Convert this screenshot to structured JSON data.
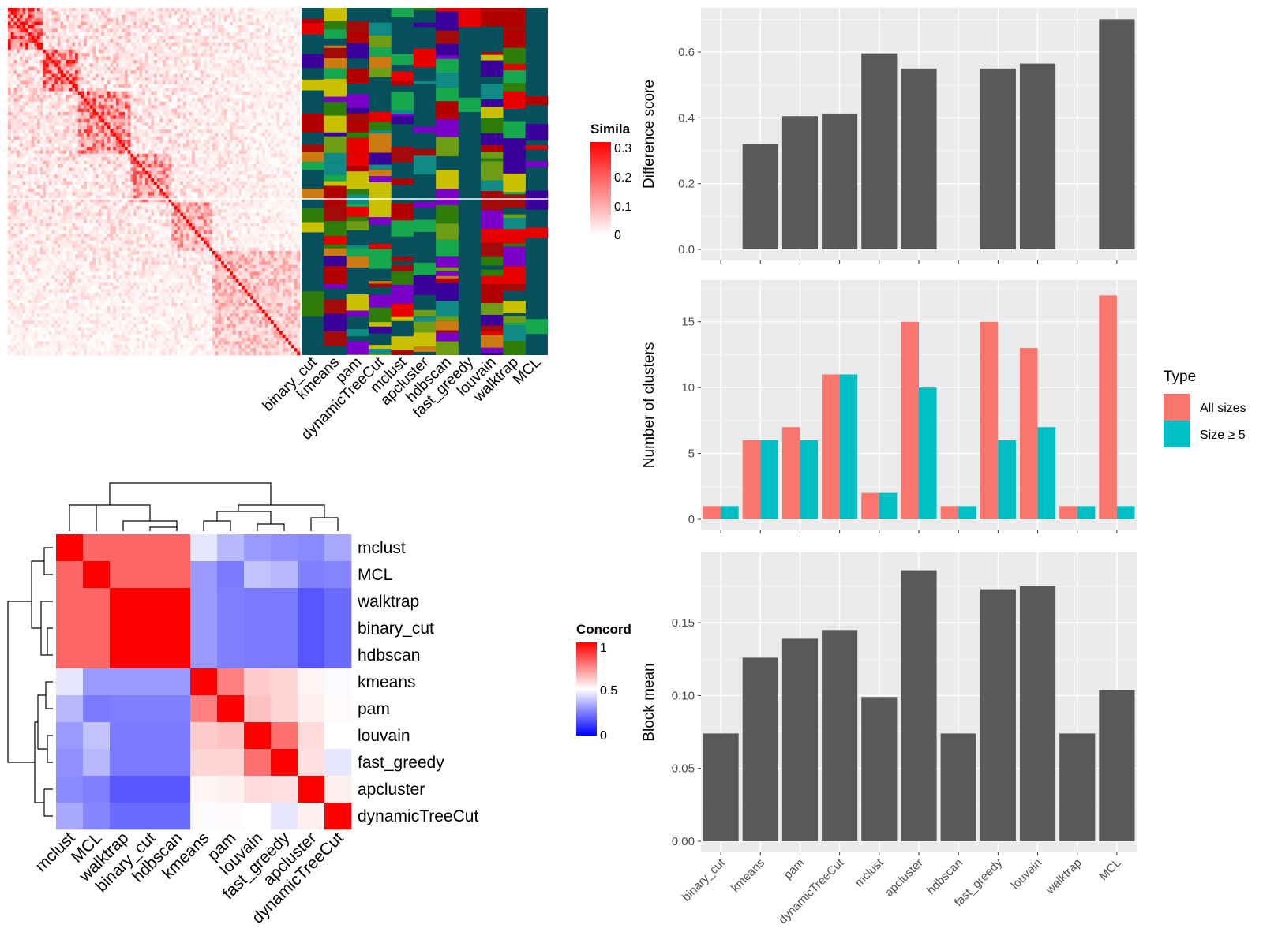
{
  "methods": [
    "binary_cut",
    "kmeans",
    "pam",
    "dynamicTreeCut",
    "mclust",
    "apcluster",
    "hdbscan",
    "fast_greedy",
    "louvain",
    "walktrap",
    "MCL"
  ],
  "panel_a": {
    "legend_title": "Simila",
    "legend_ticks": [
      "0.3",
      "0.2",
      "0.1",
      "0"
    ],
    "colors": {
      "low": "#ffffff",
      "high": "#ff0000",
      "bg": "#06505e"
    }
  },
  "panel_b": {
    "legend_title": "Concord",
    "legend_ticks": [
      "1",
      "0.5",
      "0"
    ],
    "order": [
      "mclust",
      "MCL",
      "walktrap",
      "binary_cut",
      "hdbscan",
      "kmeans",
      "pam",
      "louvain",
      "fast_greedy",
      "apcluster",
      "dynamicTreeCut"
    ],
    "colors": {
      "low": "#0000ff",
      "mid": "#ffffff",
      "high": "#ff0000"
    }
  },
  "chart_data": [
    {
      "type": "bar",
      "categories": [
        "binary_cut",
        "kmeans",
        "pam",
        "dynamicTreeCut",
        "mclust",
        "apcluster",
        "hdbscan",
        "fast_greedy",
        "louvain",
        "walktrap",
        "MCL"
      ],
      "values": [
        0,
        0.32,
        0.405,
        0.413,
        0.596,
        0.55,
        0,
        0.55,
        0.565,
        0,
        0.7
      ],
      "ylabel": "Difference score",
      "ylim": [
        0,
        0.72
      ],
      "yticks": [
        "0.0",
        "0.2",
        "0.4",
        "0.6"
      ],
      "ytick_values": [
        0,
        0.2,
        0.4,
        0.6
      ],
      "bar_color": "#595959"
    },
    {
      "type": "bar",
      "categories": [
        "binary_cut",
        "kmeans",
        "pam",
        "dynamicTreeCut",
        "mclust",
        "apcluster",
        "hdbscan",
        "fast_greedy",
        "louvain",
        "walktrap",
        "MCL"
      ],
      "series": [
        {
          "name": "All sizes",
          "values": [
            1,
            6,
            7,
            11,
            2,
            15,
            1,
            15,
            13,
            1,
            17
          ],
          "color": "#f8766d"
        },
        {
          "name": "Size ≥ 5",
          "values": [
            1,
            6,
            6,
            11,
            2,
            10,
            1,
            6,
            7,
            1,
            1
          ],
          "color": "#00bfc4"
        }
      ],
      "ylabel": "Number of clusters",
      "ylim": [
        0,
        17.8
      ],
      "yticks": [
        "0",
        "5",
        "10",
        "15"
      ],
      "ytick_values": [
        0,
        5,
        10,
        15
      ],
      "legend_title": "Type",
      "legend_position": "right"
    },
    {
      "type": "bar",
      "categories": [
        "binary_cut",
        "kmeans",
        "pam",
        "dynamicTreeCut",
        "mclust",
        "apcluster",
        "hdbscan",
        "fast_greedy",
        "louvain",
        "walktrap",
        "MCL"
      ],
      "values": [
        0.074,
        0.126,
        0.139,
        0.145,
        0.099,
        0.186,
        0.074,
        0.173,
        0.175,
        0.074,
        0.104
      ],
      "ylabel": "Block mean",
      "ylim": [
        0,
        0.195
      ],
      "yticks": [
        "0.00",
        "0.05",
        "0.10",
        "0.15"
      ],
      "ytick_values": [
        0,
        0.05,
        0.1,
        0.15
      ],
      "bar_color": "#595959"
    }
  ]
}
